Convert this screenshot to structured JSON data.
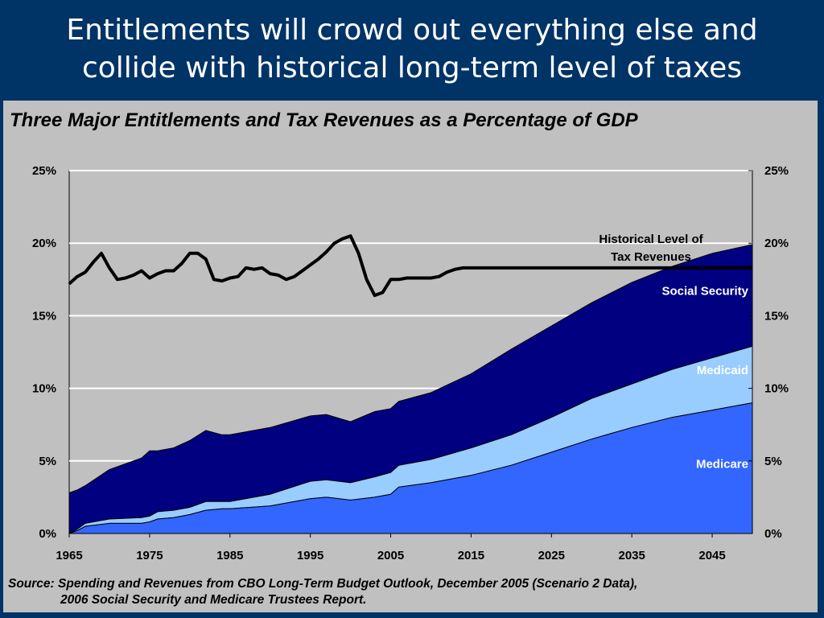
{
  "slide": {
    "title_line1": "Entitlements will crowd out everything else and",
    "title_line2": "collide with historical long-term level of taxes",
    "background_color": "#003366",
    "panel_color": "#c0c0c0"
  },
  "source": {
    "line1": "Source: Spending and Revenues from CBO Long-Term Budget Outlook, December 2005 (Scenario 2 Data),",
    "line2": "2006 Social Security and Medicare Trustees Report."
  },
  "chart_data": {
    "type": "area",
    "stacked": true,
    "title": "Three Major Entitlements and Tax Revenues as a Percentage of GDP",
    "x_ticks": [
      "1965",
      "1975",
      "1985",
      "1995",
      "2005",
      "2015",
      "2025",
      "2035",
      "2045"
    ],
    "y_ticks": [
      "0%",
      "5%",
      "10%",
      "15%",
      "20%",
      "25%"
    ],
    "y_ticks_right": [
      "0%",
      "5%",
      "10%",
      "15%",
      "20%",
      "25%"
    ],
    "xlim": [
      1965,
      2050
    ],
    "ylim": [
      0,
      25
    ],
    "grid": "horizontal",
    "series": [
      {
        "name": "Medicare",
        "color": "#3366ff",
        "x": [
          1965,
          1966,
          1967,
          1970,
          1974,
          1975,
          1976,
          1978,
          1980,
          1982,
          1984,
          1985,
          1990,
          1995,
          1997,
          2000,
          2003,
          2005,
          2006,
          2010,
          2015,
          2020,
          2025,
          2030,
          2035,
          2040,
          2045,
          2050
        ],
        "values": [
          0.0,
          0.2,
          0.5,
          0.7,
          0.7,
          0.8,
          1.0,
          1.1,
          1.3,
          1.6,
          1.7,
          1.7,
          1.9,
          2.4,
          2.5,
          2.3,
          2.5,
          2.7,
          3.2,
          3.5,
          4.0,
          4.7,
          5.6,
          6.5,
          7.3,
          8.0,
          8.5,
          9.0
        ]
      },
      {
        "name": "Medicaid",
        "color": "#99ccff",
        "x": [
          1965,
          1966,
          1967,
          1970,
          1974,
          1975,
          1976,
          1978,
          1980,
          1982,
          1984,
          1985,
          1990,
          1995,
          1997,
          2000,
          2003,
          2005,
          2006,
          2010,
          2015,
          2020,
          2025,
          2030,
          2035,
          2040,
          2045,
          2050
        ],
        "values": [
          0.0,
          0.1,
          0.2,
          0.3,
          0.4,
          0.4,
          0.5,
          0.5,
          0.5,
          0.6,
          0.5,
          0.5,
          0.8,
          1.2,
          1.2,
          1.2,
          1.4,
          1.5,
          1.5,
          1.6,
          1.9,
          2.1,
          2.4,
          2.8,
          3.0,
          3.3,
          3.6,
          3.9
        ]
      },
      {
        "name": "Social Security",
        "color": "#000080",
        "x": [
          1965,
          1966,
          1967,
          1970,
          1974,
          1975,
          1976,
          1978,
          1980,
          1982,
          1984,
          1985,
          1990,
          1995,
          1997,
          2000,
          2003,
          2005,
          2006,
          2010,
          2015,
          2020,
          2025,
          2030,
          2035,
          2040,
          2045,
          2050
        ],
        "values": [
          2.8,
          2.7,
          2.6,
          3.4,
          4.1,
          4.5,
          4.2,
          4.3,
          4.6,
          4.9,
          4.6,
          4.6,
          4.6,
          4.5,
          4.5,
          4.2,
          4.5,
          4.4,
          4.4,
          4.6,
          5.1,
          5.9,
          6.3,
          6.6,
          7.0,
          7.1,
          7.2,
          7.0
        ]
      }
    ],
    "line_series": {
      "name": "Historical Level of Tax Revenues",
      "color": "#000000",
      "x": [
        1965,
        1966,
        1967,
        1968,
        1969,
        1970,
        1971,
        1972,
        1973,
        1974,
        1975,
        1976,
        1977,
        1978,
        1979,
        1980,
        1981,
        1982,
        1983,
        1984,
        1985,
        1986,
        1987,
        1988,
        1989,
        1990,
        1991,
        1992,
        1993,
        1994,
        1995,
        1996,
        1997,
        1998,
        1999,
        2000,
        2001,
        2002,
        2003,
        2004,
        2005,
        2006,
        2007,
        2008,
        2009,
        2010,
        2011,
        2012,
        2013,
        2014,
        2050
      ],
      "values": [
        17.2,
        17.7,
        18.0,
        18.7,
        19.3,
        18.3,
        17.5,
        17.6,
        17.8,
        18.1,
        17.6,
        17.9,
        18.1,
        18.1,
        18.6,
        19.3,
        19.3,
        18.9,
        17.5,
        17.4,
        17.6,
        17.7,
        18.3,
        18.2,
        18.3,
        17.9,
        17.8,
        17.5,
        17.7,
        18.1,
        18.5,
        18.9,
        19.4,
        20.0,
        20.3,
        20.5,
        19.3,
        17.5,
        16.4,
        16.6,
        17.5,
        17.5,
        17.6,
        17.6,
        17.6,
        17.6,
        17.7,
        18.0,
        18.2,
        18.3,
        18.3
      ]
    },
    "annotations": {
      "tax_label_line1": "Historical Level of",
      "tax_label_line2": "Tax Revenues"
    }
  }
}
